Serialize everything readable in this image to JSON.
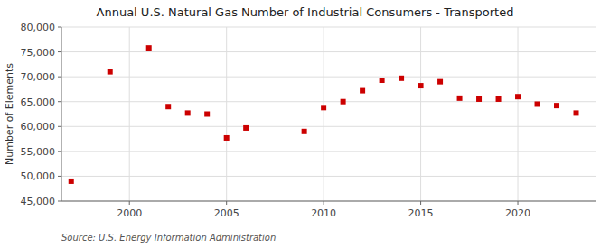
{
  "chart_data": {
    "type": "scatter",
    "title": "Annual U.S. Natural Gas Number of Industrial Consumers - Transported",
    "y_label": "Number of Elements",
    "source": "Source: U.S. Energy Information Administration",
    "x": [
      1997,
      1999,
      2001,
      2002,
      2003,
      2004,
      2005,
      2006,
      2009,
      2010,
      2011,
      2012,
      2013,
      2014,
      2015,
      2016,
      2017,
      2018,
      2019,
      2020,
      2021,
      2022,
      2023
    ],
    "values": [
      49000,
      71000,
      75800,
      64000,
      62700,
      62500,
      57700,
      59700,
      59000,
      63800,
      65000,
      67200,
      69300,
      69700,
      68200,
      69000,
      65700,
      65500,
      65500,
      66000,
      64500,
      64200,
      62700
    ],
    "color": "#cc0000",
    "marker": "square",
    "xlim": [
      1996.5,
      2024
    ],
    "xticks": [
      2000,
      2005,
      2010,
      2015,
      2020
    ],
    "ylim": [
      45000,
      80000
    ],
    "yticks": [
      {
        "value": 45000,
        "label": "45,000"
      },
      {
        "value": 50000,
        "label": "50,000"
      },
      {
        "value": 55000,
        "label": "55,000"
      },
      {
        "value": 60000,
        "label": "60,000"
      },
      {
        "value": 65000,
        "label": "65,000"
      },
      {
        "value": 70000,
        "label": "70,000"
      },
      {
        "value": 75000,
        "label": "75,000"
      },
      {
        "value": 80000,
        "label": "80,000"
      }
    ],
    "grid": true
  }
}
